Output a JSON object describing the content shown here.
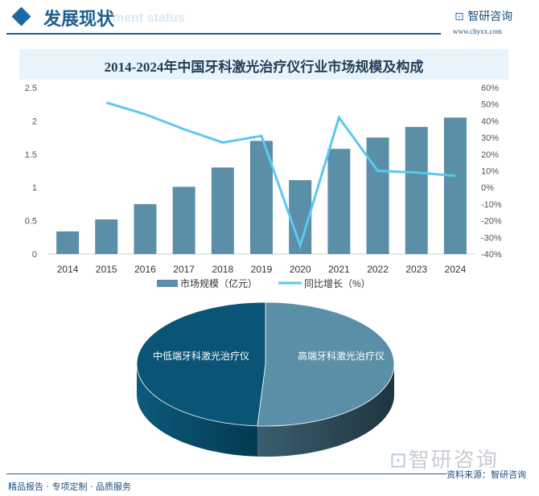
{
  "header": {
    "title": "发展现状",
    "subtitle": "ment status",
    "logo_text": "智研咨询",
    "logo_url": "www.chyxx.com"
  },
  "chart_title": "2014-2024年中国牙科激光治疗仪行业市场规模及构成",
  "colors": {
    "bar": "#5b8fa8",
    "line": "#5bc8f2",
    "pie_high": "#5b8fa8",
    "pie_low": "#0a5475",
    "accent": "#1d5f8f"
  },
  "chart_data": [
    {
      "type": "bar+line",
      "categories": [
        "2014",
        "2015",
        "2016",
        "2017",
        "2018",
        "2019",
        "2020",
        "2021",
        "2022",
        "2023",
        "2024"
      ],
      "series": [
        {
          "name": "市场规模（亿元）",
          "type": "bar",
          "axis": "left",
          "values": [
            0.34,
            0.52,
            0.75,
            1.01,
            1.3,
            1.7,
            1.11,
            1.58,
            1.75,
            1.91,
            2.05
          ]
        },
        {
          "name": "同比增长（%）",
          "type": "line",
          "axis": "right",
          "values": [
            null,
            51,
            44,
            35,
            27,
            31,
            -35,
            42,
            10,
            9,
            7
          ]
        }
      ],
      "y_left": {
        "range": [
          0,
          2.5
        ],
        "ticks": [
          "0",
          "0.5",
          "1",
          "1.5",
          "2",
          "2.5"
        ]
      },
      "y_right": {
        "range": [
          -40,
          60
        ],
        "ticks": [
          "-40%",
          "-30%",
          "-20%",
          "-10%",
          "0%",
          "10%",
          "20%",
          "30%",
          "40%",
          "50%",
          "60%"
        ]
      },
      "legend": "bottom",
      "grid": false
    },
    {
      "type": "pie",
      "style": "3d",
      "slices": [
        {
          "label": "高端牙科激光治疗仪",
          "value": 51
        },
        {
          "label": "中低端牙科激光治疗仪",
          "value": 49
        }
      ]
    }
  ],
  "footer": {
    "left": "精品报告 · 专项定制 · 品质服务",
    "source": "资料来源：智研咨询",
    "watermark": "智研咨询"
  }
}
